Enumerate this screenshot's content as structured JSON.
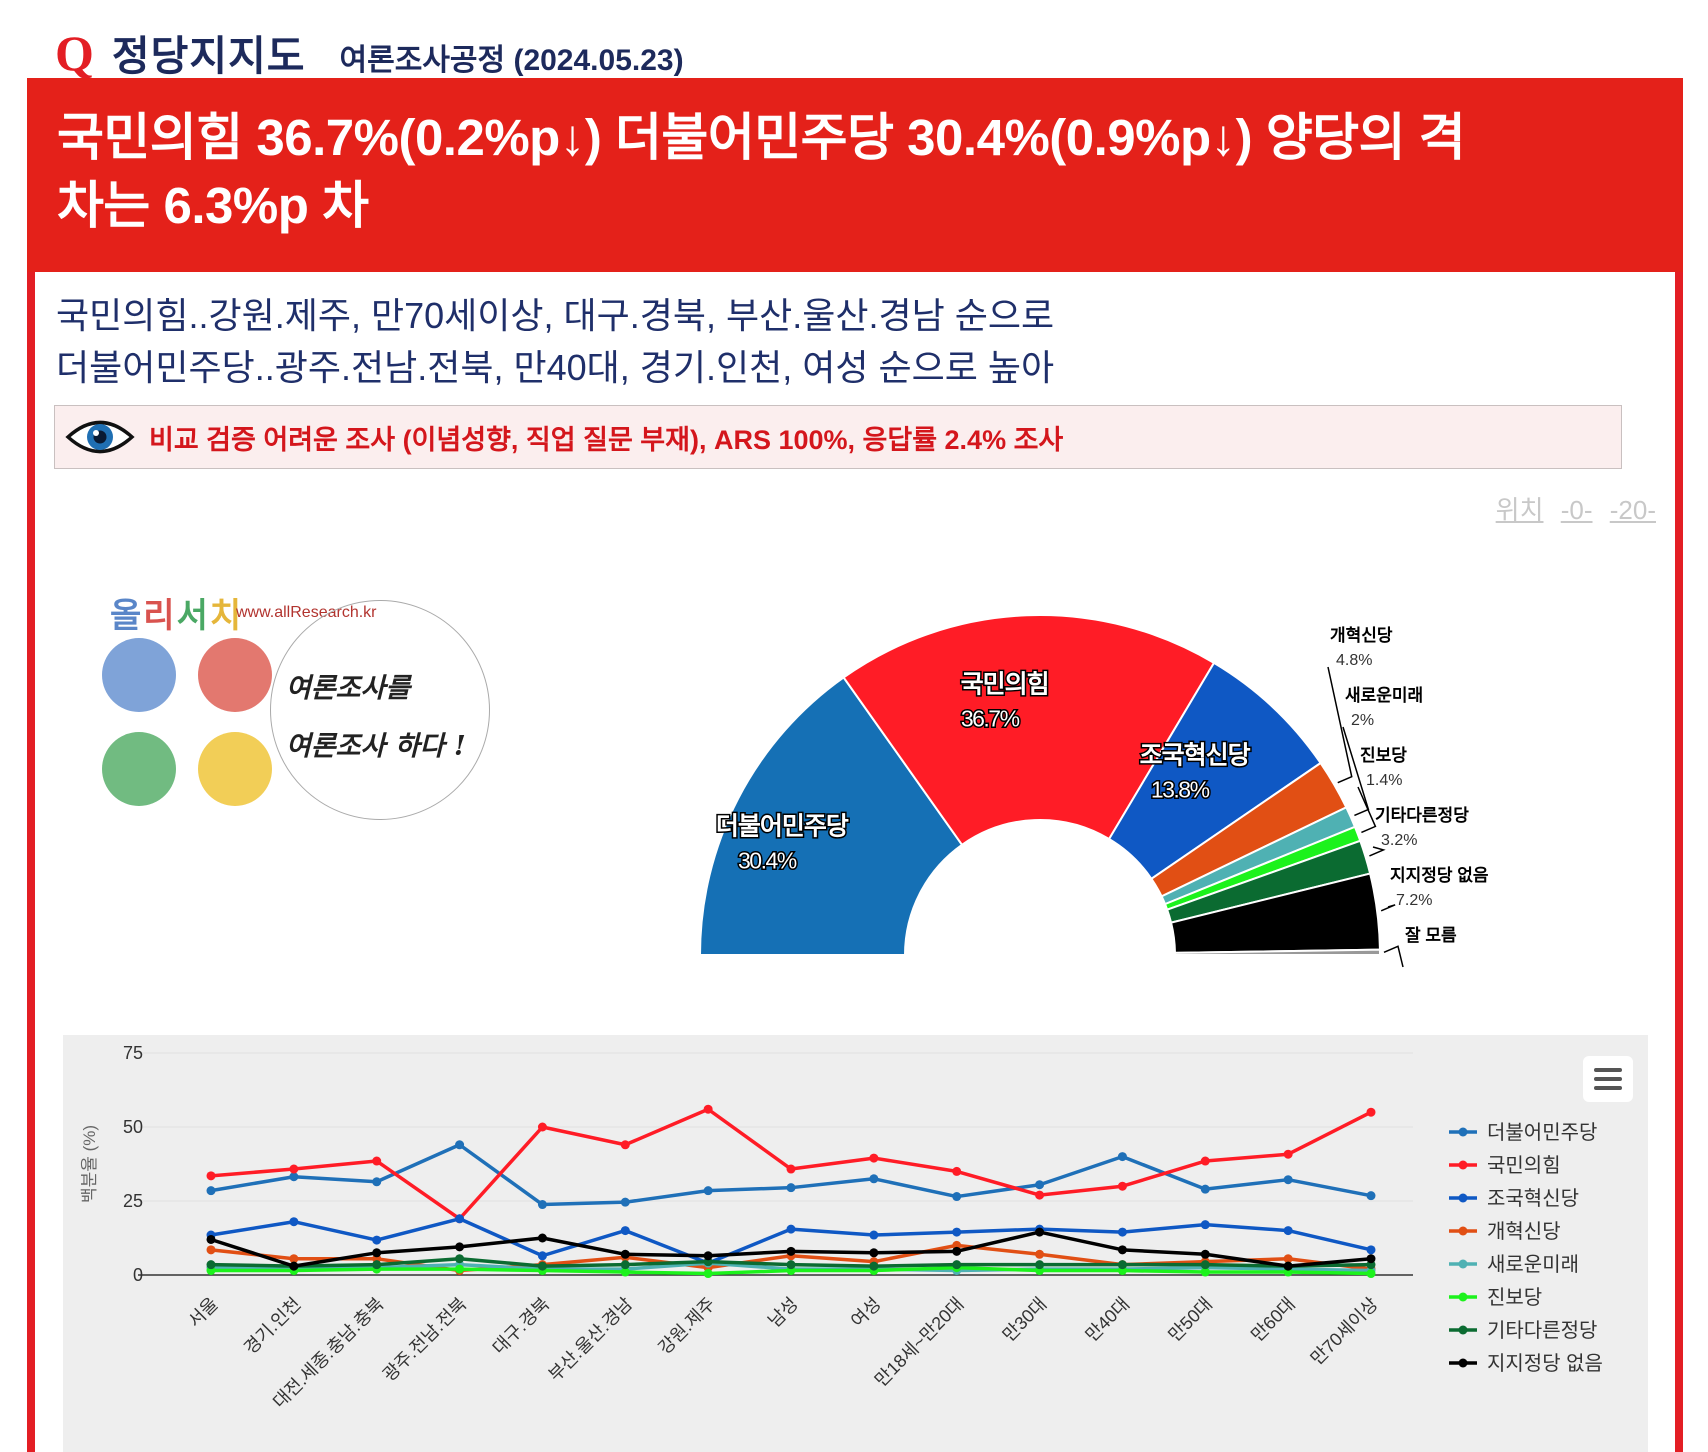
{
  "header": {
    "q_mark": "Q",
    "title": "정당지지도",
    "subtitle": "여론조사공정 (2024.05.23)"
  },
  "banner": {
    "headline_line1": "국민의힘 36.7%(0.2%p↓) 더불어민주당 30.4%(0.9%p↓) 양당의 격",
    "headline_line2": "차는 6.3%p 차"
  },
  "summary": {
    "line1": "국민의힘..강원.제주, 만70세이상, 대구.경북, 부산.울산.경남 순으로",
    "line2": "더불어민주당..광주.전남.전북, 만40대, 경기.인천, 여성 순으로 높아"
  },
  "notice": {
    "text": "비교 검증 어려운 조사 (이념성향, 직업 질문 부재), ARS 100%, 응답률 2.4% 조사",
    "icon": "eye-icon"
  },
  "nav": {
    "label": "위치",
    "link1": "-0-",
    "link2": "-20-"
  },
  "logo": {
    "brand": "올리서치",
    "url": "www.allResearch.kr",
    "slogan1": "여론조사를",
    "slogan2": "여론조사 하다 !",
    "colors": [
      "#7fa3d8",
      "#e3786f",
      "#71bb81",
      "#f2ce57"
    ],
    "brand_colors": [
      "#5a86c8",
      "#d9534f",
      "#4aa864",
      "#e5b63a"
    ]
  },
  "colors": {
    "accent_red": "#e4211a",
    "navy": "#1d2a5c"
  },
  "chart_data": [
    {
      "type": "pie",
      "subtype": "semicircle",
      "title": "",
      "slices": [
        {
          "name": "더불어민주당",
          "value": 30.4,
          "label": "30.4%",
          "color": "#1570b5",
          "label_style": "inside"
        },
        {
          "name": "국민의힘",
          "value": 36.7,
          "label": "36.7%",
          "color": "#ff1c26",
          "label_style": "inside"
        },
        {
          "name": "조국혁신당",
          "value": 13.8,
          "label": "13.8%",
          "color": "#0f58c4",
          "label_style": "inside"
        },
        {
          "name": "개혁신당",
          "value": 4.8,
          "label": "4.8%",
          "color": "#e14f14",
          "label_style": "outside"
        },
        {
          "name": "새로운미래",
          "value": 2.0,
          "label": "2%",
          "color": "#4fb1b3",
          "label_style": "outside"
        },
        {
          "name": "진보당",
          "value": 1.4,
          "label": "1.4%",
          "color": "#1cf21c",
          "label_style": "outside"
        },
        {
          "name": "기타다른정당",
          "value": 3.2,
          "label": "3.2%",
          "color": "#0b6b31",
          "label_style": "outside"
        },
        {
          "name": "지지정당 없음",
          "value": 7.2,
          "label": "7.2%",
          "color": "#000000",
          "label_style": "outside"
        },
        {
          "name": "잘 모름",
          "value": 0.5,
          "label": "",
          "color": "#999999",
          "label_style": "outside"
        }
      ]
    },
    {
      "type": "line",
      "title": "",
      "xlabel": "",
      "ylabel": "백분율 (%)",
      "ylim": [
        0,
        75
      ],
      "yticks": [
        "0",
        "25",
        "50",
        "75"
      ],
      "categories": [
        "서울",
        "경기.인천",
        "대전.세종.충남.충북",
        "광주.전남.전북",
        "대구.경북",
        "부산.울산.경남",
        "강원.제주",
        "남성",
        "여성",
        "만18세~만20대",
        "만30대",
        "만40대",
        "만50대",
        "만60대",
        "만70세이상"
      ],
      "legend": "right",
      "menu_icon": "hamburger-menu-icon",
      "series": [
        {
          "name": "더불어민주당",
          "color": "#1f70b8",
          "values": [
            28.5,
            33.2,
            31.5,
            44.0,
            23.8,
            24.6,
            28.5,
            29.5,
            32.5,
            26.5,
            30.5,
            40.0,
            29.0,
            32.2,
            26.8
          ]
        },
        {
          "name": "국민의힘",
          "color": "#ff1c26",
          "values": [
            33.5,
            35.8,
            38.5,
            19.0,
            50.0,
            44.0,
            56.0,
            35.8,
            39.5,
            35.0,
            27.0,
            30.0,
            38.5,
            40.8,
            55.0
          ]
        },
        {
          "name": "조국혁신당",
          "color": "#0f58c4",
          "values": [
            13.5,
            18.0,
            11.8,
            19.0,
            6.5,
            15.0,
            4.0,
            15.5,
            13.5,
            14.5,
            15.5,
            14.5,
            17.0,
            15.0,
            8.5
          ]
        },
        {
          "name": "개혁신당",
          "color": "#e14f14",
          "values": [
            8.5,
            5.5,
            5.5,
            1.5,
            3.5,
            6.0,
            2.5,
            6.5,
            4.5,
            10.0,
            7.0,
            3.5,
            4.5,
            5.5,
            2.0
          ]
        },
        {
          "name": "새로운미래",
          "color": "#4fb1b3",
          "values": [
            2.5,
            2.0,
            2.5,
            3.5,
            2.0,
            2.0,
            4.0,
            2.0,
            2.0,
            1.5,
            2.0,
            2.0,
            2.5,
            2.0,
            1.5
          ]
        },
        {
          "name": "진보당",
          "color": "#1cf21c",
          "values": [
            1.5,
            1.5,
            2.0,
            2.0,
            1.5,
            1.0,
            0.5,
            1.5,
            1.5,
            2.5,
            1.5,
            1.5,
            1.0,
            1.0,
            0.5
          ]
        },
        {
          "name": "기타다른정당",
          "color": "#0b6b31",
          "values": [
            3.5,
            3.0,
            3.5,
            5.5,
            3.0,
            3.5,
            4.5,
            3.5,
            3.0,
            3.5,
            3.5,
            3.5,
            3.5,
            3.0,
            3.5
          ]
        },
        {
          "name": "지지정당 없음",
          "color": "#000000",
          "values": [
            12.0,
            3.0,
            7.5,
            9.5,
            12.5,
            7.0,
            6.5,
            8.0,
            7.5,
            8.0,
            14.5,
            8.5,
            7.0,
            3.0,
            5.5
          ]
        }
      ]
    }
  ]
}
